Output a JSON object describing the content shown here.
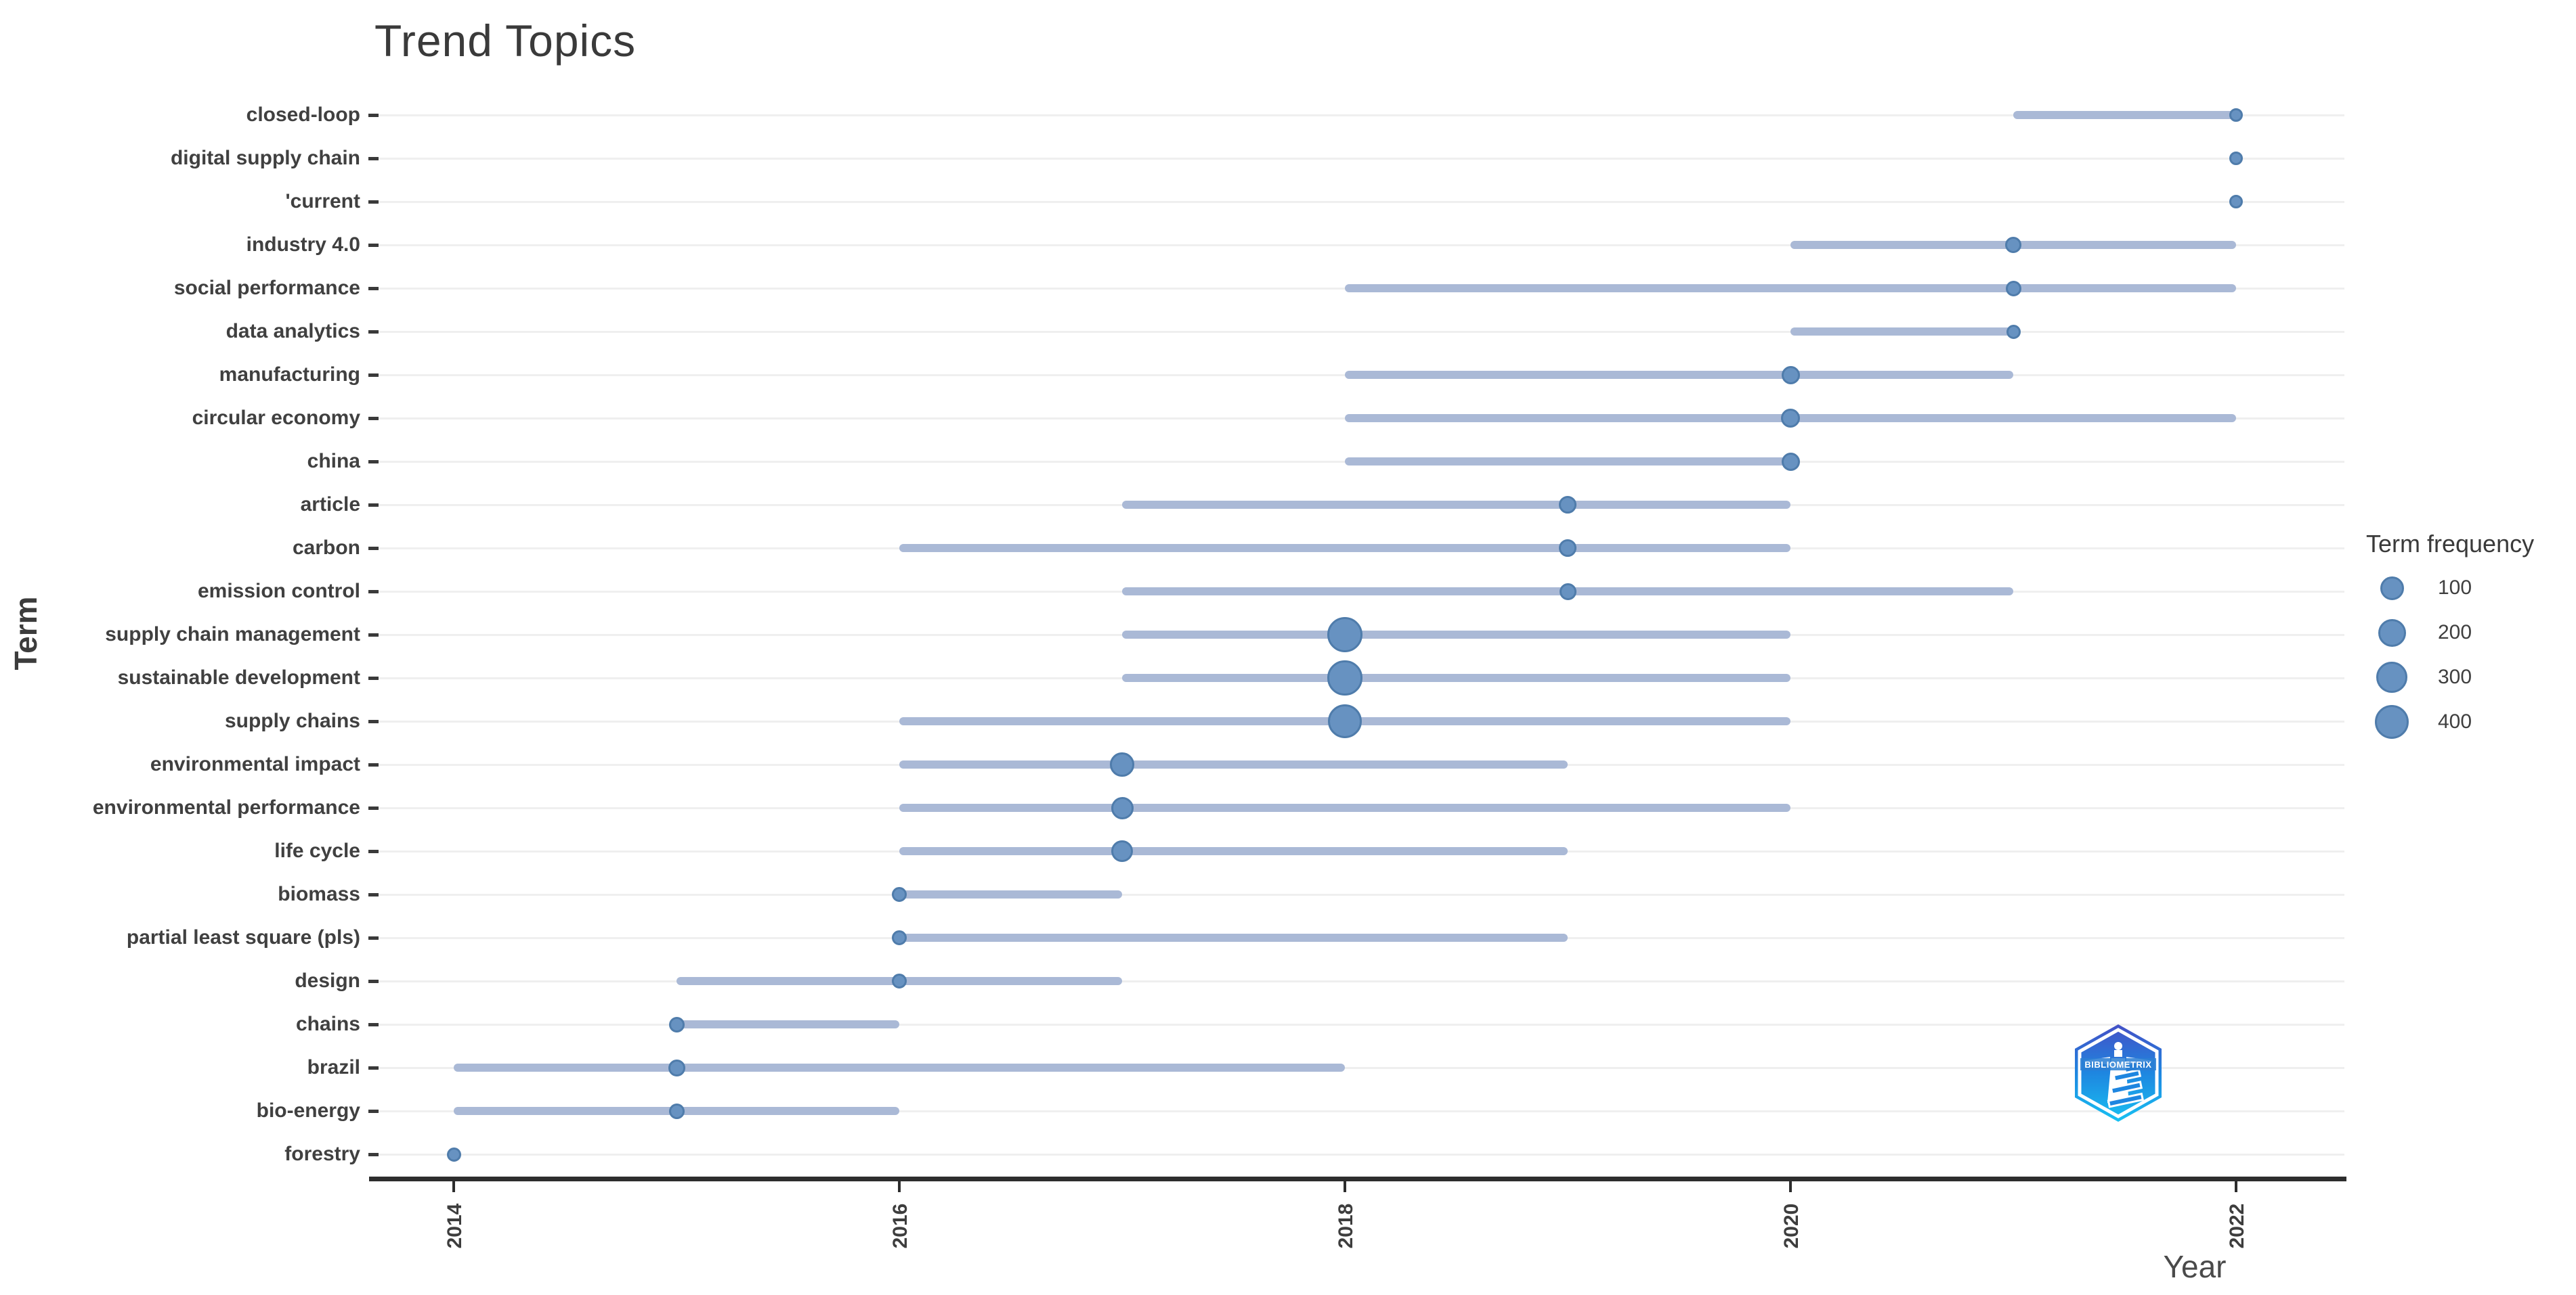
{
  "title": "Trend Topics",
  "axes": {
    "x_label": "Year",
    "y_label": "Term",
    "x_ticks": [
      2014,
      2016,
      2018,
      2020,
      2022
    ]
  },
  "legend": {
    "title": "Term frequency",
    "sizes": [
      100,
      200,
      300,
      400
    ]
  },
  "logo": {
    "text": "BIBLIOMETRIX"
  },
  "colors": {
    "dot_fill": "#6792c1",
    "dot_border": "#4f7cab",
    "range_line": "#aab9d6",
    "gridline": "#efefef",
    "axis_line": "#2d2d2d",
    "text": "#3d3d3d"
  },
  "chart_data": {
    "type": "scatter",
    "title": "Trend Topics",
    "xlabel": "Year",
    "ylabel": "Term",
    "x_range": [
      2013.6,
      2022.5
    ],
    "grid": "horizontal-only",
    "legend_position": "right",
    "size_legend": {
      "title": "Term frequency",
      "values": [
        100,
        200,
        300,
        400
      ]
    },
    "items": [
      {
        "term": "closed-loop",
        "year_start": 2021,
        "year_peak": 2022,
        "year_end": 2022,
        "freq": 28
      },
      {
        "term": "digital supply chain",
        "year_start": 2022,
        "year_peak": 2022,
        "year_end": 2022,
        "freq": 25
      },
      {
        "term": "'current",
        "year_start": 2022,
        "year_peak": 2022,
        "year_end": 2022,
        "freq": 25
      },
      {
        "term": "industry 4.0",
        "year_start": 2020,
        "year_peak": 2021,
        "year_end": 2022,
        "freq": 45
      },
      {
        "term": "social performance",
        "year_start": 2018,
        "year_peak": 2021,
        "year_end": 2022,
        "freq": 40
      },
      {
        "term": "data analytics",
        "year_start": 2020,
        "year_peak": 2021,
        "year_end": 2021,
        "freq": 30
      },
      {
        "term": "manufacturing",
        "year_start": 2018,
        "year_peak": 2020,
        "year_end": 2021,
        "freq": 60
      },
      {
        "term": "circular economy",
        "year_start": 2018,
        "year_peak": 2020,
        "year_end": 2022,
        "freq": 65
      },
      {
        "term": "china",
        "year_start": 2018,
        "year_peak": 2020,
        "year_end": 2020,
        "freq": 60
      },
      {
        "term": "article",
        "year_start": 2017,
        "year_peak": 2019,
        "year_end": 2020,
        "freq": 55
      },
      {
        "term": "carbon",
        "year_start": 2016,
        "year_peak": 2019,
        "year_end": 2020,
        "freq": 55
      },
      {
        "term": "emission control",
        "year_start": 2017,
        "year_peak": 2019,
        "year_end": 2021,
        "freq": 50
      },
      {
        "term": "supply chain management",
        "year_start": 2017,
        "year_peak": 2018,
        "year_end": 2020,
        "freq": 450
      },
      {
        "term": "sustainable development",
        "year_start": 2017,
        "year_peak": 2018,
        "year_end": 2020,
        "freq": 430
      },
      {
        "term": "supply chains",
        "year_start": 2016,
        "year_peak": 2018,
        "year_end": 2020,
        "freq": 410
      },
      {
        "term": "environmental impact",
        "year_start": 2016,
        "year_peak": 2017,
        "year_end": 2019,
        "freq": 110
      },
      {
        "term": "environmental performance",
        "year_start": 2016,
        "year_peak": 2017,
        "year_end": 2020,
        "freq": 90
      },
      {
        "term": "life cycle",
        "year_start": 2016,
        "year_peak": 2017,
        "year_end": 2019,
        "freq": 85
      },
      {
        "term": "biomass",
        "year_start": 2016,
        "year_peak": 2016,
        "year_end": 2017,
        "freq": 35
      },
      {
        "term": "partial least square (pls)",
        "year_start": 2016,
        "year_peak": 2016,
        "year_end": 2019,
        "freq": 35
      },
      {
        "term": "design",
        "year_start": 2015,
        "year_peak": 2016,
        "year_end": 2017,
        "freq": 35
      },
      {
        "term": "chains",
        "year_start": 2015,
        "year_peak": 2015,
        "year_end": 2016,
        "freq": 40
      },
      {
        "term": "brazil",
        "year_start": 2014,
        "year_peak": 2015,
        "year_end": 2018,
        "freq": 50
      },
      {
        "term": "bio-energy",
        "year_start": 2014,
        "year_peak": 2015,
        "year_end": 2016,
        "freq": 40
      },
      {
        "term": "forestry",
        "year_start": 2014,
        "year_peak": 2014,
        "year_end": 2014,
        "freq": 30
      }
    ]
  }
}
